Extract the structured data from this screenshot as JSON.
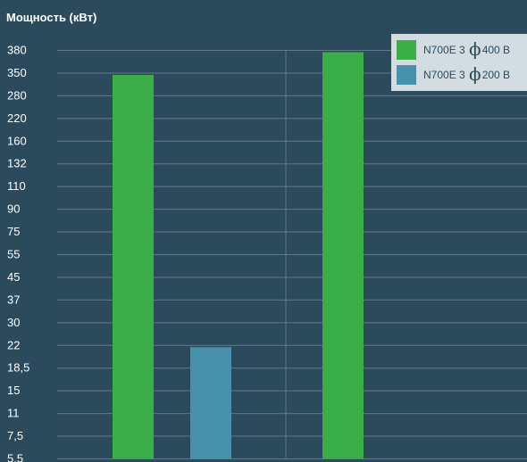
{
  "chart_data": {
    "type": "bar",
    "title": "Мощность (кВт)",
    "y_ticks": [
      "5,5",
      "7,5",
      "11",
      "15",
      "18,5",
      "22",
      "30",
      "37",
      "45",
      "55",
      "75",
      "90",
      "110",
      "132",
      "160",
      "220",
      "280",
      "350",
      "380"
    ],
    "scale": "categorical-step",
    "grid": true,
    "legend_position": "top-right",
    "series": [
      {
        "name": "N700E 3 ϕ 400 В",
        "name_prefix": "N700E 3",
        "name_symbol": "ϕ",
        "name_suffix": "400 В",
        "color": "#3cae48"
      },
      {
        "name": "N700E 3 ϕ 200 В",
        "name_prefix": "N700E 3",
        "name_symbol": "ϕ",
        "name_suffix": "200 В",
        "color": "#4791ad"
      }
    ],
    "bars": [
      {
        "group": 1,
        "series": 0,
        "value": "350"
      },
      {
        "group": 1,
        "series": 1,
        "value": "22"
      },
      {
        "group": 2,
        "series": 0,
        "value": "380"
      }
    ]
  },
  "colors": {
    "background": "#2b4a5c",
    "grid": "#5f7b8b",
    "text": "#ffffff",
    "legend_bg": "#d3dde1",
    "legend_text": "#2b4a5c"
  }
}
